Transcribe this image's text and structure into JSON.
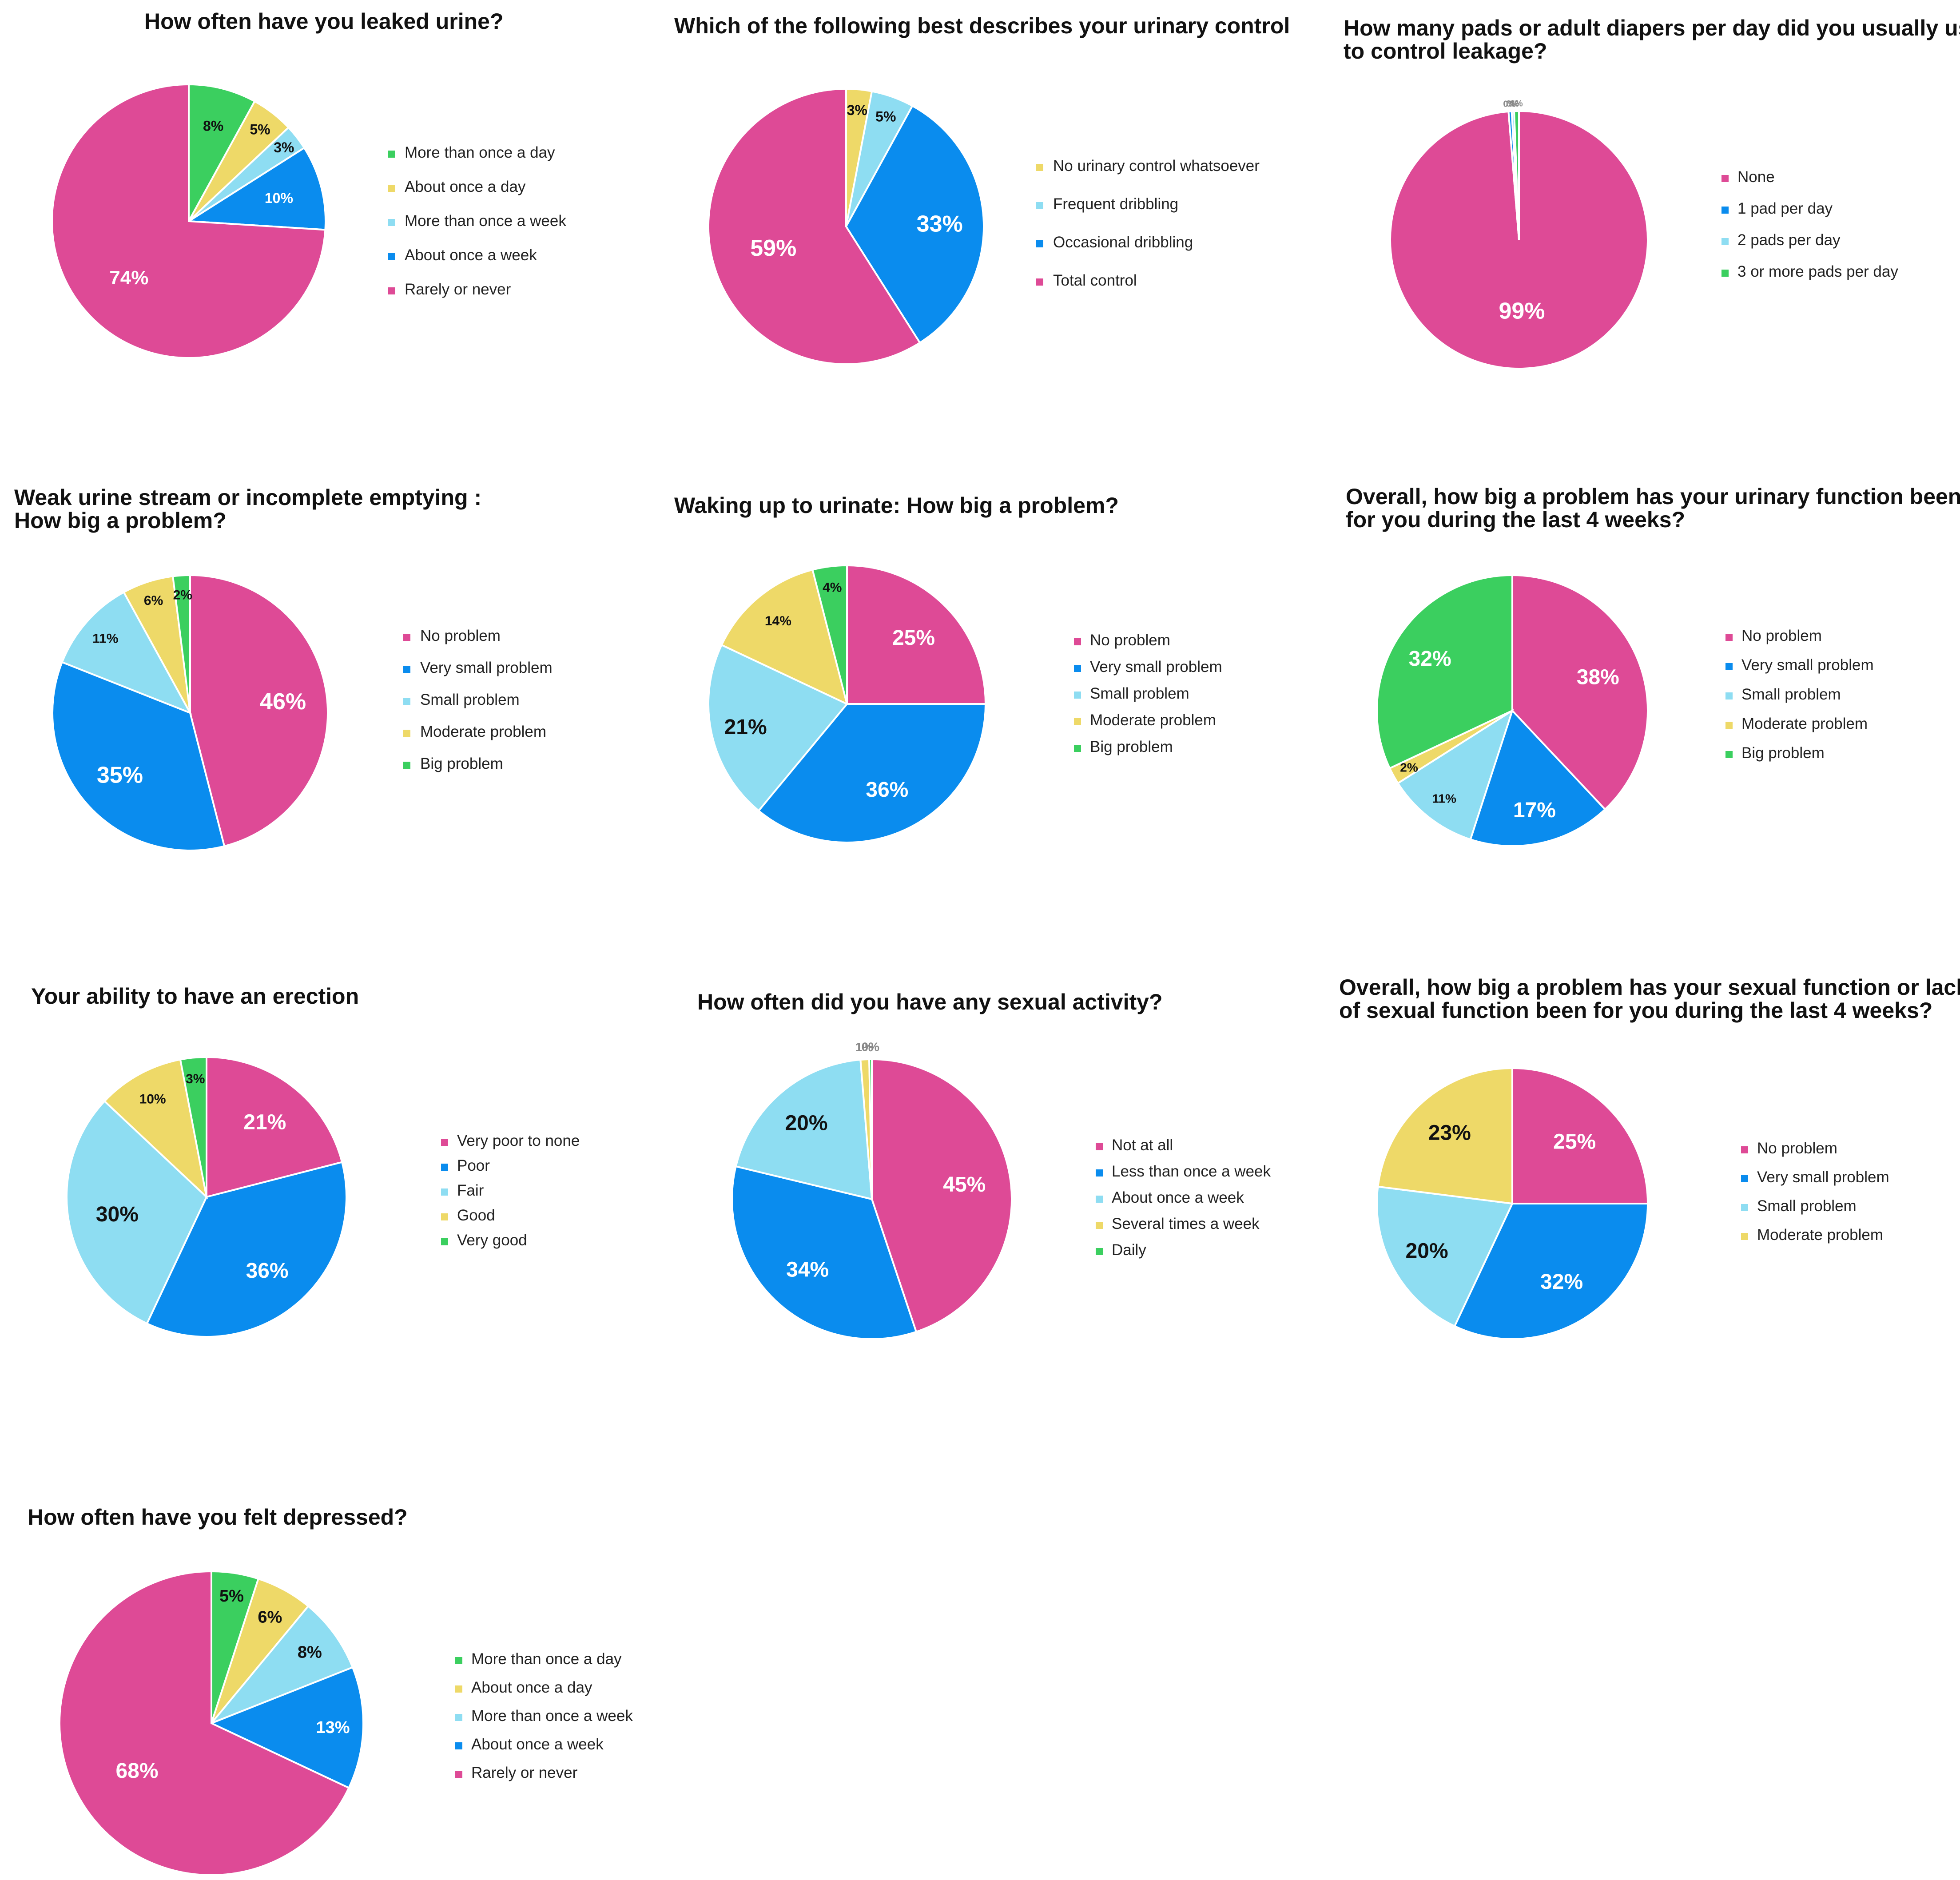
{
  "colors": {
    "pink": "#DE4A96",
    "blue": "#0A8CEE",
    "lightblue": "#8EDDF2",
    "yellow": "#EED968",
    "green": "#3BCF5F"
  },
  "chart_data": [
    {
      "type": "pie",
      "title": [
        "How often have you leaked urine?"
      ],
      "slices": [
        {
          "label": "More than once a day",
          "value": 8,
          "pct": "8%",
          "color": "green"
        },
        {
          "label": "About once a day",
          "value": 5,
          "pct": "5%",
          "color": "yellow"
        },
        {
          "label": "More than once a week",
          "value": 3,
          "pct": "3%",
          "color": "lightblue"
        },
        {
          "label": "About once a week",
          "value": 10,
          "pct": "10%",
          "color": "blue"
        },
        {
          "label": "Rarely or never",
          "value": 74,
          "pct": "74%",
          "color": "pink"
        }
      ],
      "legend": [
        "More than once a day",
        "About once a day",
        "More than once a week",
        "About once a week",
        "Rarely or never"
      ]
    },
    {
      "type": "pie",
      "title": [
        "Which of the following best describes your urinary control"
      ],
      "slices": [
        {
          "label": "No urinary control whatsoever",
          "value": 3,
          "pct": "3%",
          "color": "yellow"
        },
        {
          "label": "Frequent dribbling",
          "value": 5,
          "pct": "5%",
          "color": "lightblue"
        },
        {
          "label": "Occasional dribbling",
          "value": 33,
          "pct": "33%",
          "color": "blue"
        },
        {
          "label": "Total control",
          "value": 59,
          "pct": "59%",
          "color": "pink"
        }
      ],
      "legend": [
        "No urinary control whatsoever",
        "Frequent dribbling",
        "Occasional dribbling",
        "Total control"
      ]
    },
    {
      "type": "pie",
      "title": [
        "How many pads or adult diapers per day did you usually use",
        "to control leakage?"
      ],
      "slices": [
        {
          "label": "None",
          "value": 99,
          "pct": "99%",
          "color": "pink"
        },
        {
          "label": "1 pad per day",
          "value": 0.4,
          "pct": "0%",
          "color": "blue"
        },
        {
          "label": "2 pads per day",
          "value": 0.3,
          "pct": "0%",
          "color": "lightblue"
        },
        {
          "label": "3 or more pads per day",
          "value": 0.6,
          "pct": "1%",
          "color": "green"
        }
      ],
      "legend": [
        "None",
        "1 pad per day",
        "2 pads per day",
        "3 or more pads per day"
      ]
    },
    {
      "type": "pie",
      "title": [
        "Weak urine stream or incomplete emptying :",
        "How big a problem?"
      ],
      "slices": [
        {
          "label": "No problem",
          "value": 46,
          "pct": "46%",
          "color": "pink"
        },
        {
          "label": "Very small problem",
          "value": 35,
          "pct": "35%",
          "color": "blue"
        },
        {
          "label": "Small problem",
          "value": 11,
          "pct": "11%",
          "color": "lightblue"
        },
        {
          "label": "Moderate problem",
          "value": 6,
          "pct": "6%",
          "color": "yellow"
        },
        {
          "label": "Big problem",
          "value": 2,
          "pct": "2%",
          "color": "green"
        }
      ],
      "legend": [
        "No problem",
        "Very small problem",
        "Small problem",
        "Moderate problem",
        "Big problem"
      ]
    },
    {
      "type": "pie",
      "title": [
        "Waking up to urinate: How big a problem?"
      ],
      "slices": [
        {
          "label": "No problem",
          "value": 25,
          "pct": "25%",
          "color": "pink"
        },
        {
          "label": "Very small problem",
          "value": 36,
          "pct": "36%",
          "color": "blue"
        },
        {
          "label": "Small problem",
          "value": 21,
          "pct": "21%",
          "color": "lightblue"
        },
        {
          "label": "Moderate problem",
          "value": 14,
          "pct": "14%",
          "color": "yellow"
        },
        {
          "label": "Big problem",
          "value": 4,
          "pct": "4%",
          "color": "green"
        }
      ],
      "legend": [
        "No problem",
        "Very small problem",
        "Small problem",
        "Moderate problem",
        "Big problem"
      ]
    },
    {
      "type": "pie",
      "title": [
        "Overall, how big a problem has your urinary function been",
        "for you during the last 4 weeks?"
      ],
      "slices": [
        {
          "label": "No problem",
          "value": 38,
          "pct": "38%",
          "color": "pink"
        },
        {
          "label": "Very small problem",
          "value": 17,
          "pct": "17%",
          "color": "blue"
        },
        {
          "label": "Small problem",
          "value": 11,
          "pct": "11%",
          "color": "lightblue"
        },
        {
          "label": "Moderate problem",
          "value": 2,
          "pct": "2%",
          "color": "yellow"
        },
        {
          "label": "Big problem",
          "value": 32,
          "pct": "32%",
          "color": "green"
        }
      ],
      "legend": [
        "No problem",
        "Very small problem",
        "Small problem",
        "Moderate problem",
        "Big problem"
      ]
    },
    {
      "type": "pie",
      "title": [
        "Your ability to have an erection"
      ],
      "slices": [
        {
          "label": "Very poor to none",
          "value": 21,
          "pct": "21%",
          "color": "pink"
        },
        {
          "label": "Poor",
          "value": 36,
          "pct": "36%",
          "color": "blue"
        },
        {
          "label": "Fair",
          "value": 30,
          "pct": "30%",
          "color": "lightblue"
        },
        {
          "label": "Good",
          "value": 10,
          "pct": "10%",
          "color": "yellow"
        },
        {
          "label": "Very good",
          "value": 3,
          "pct": "3%",
          "color": "green"
        }
      ],
      "legend": [
        "Very poor to none",
        "Poor",
        "Fair",
        "Good",
        "Very good"
      ]
    },
    {
      "type": "pie",
      "title": [
        "How often did you have any sexual activity?"
      ],
      "slices": [
        {
          "label": "Not at all",
          "value": 45,
          "pct": "45%",
          "color": "pink"
        },
        {
          "label": "Less than once a week",
          "value": 34,
          "pct": "34%",
          "color": "blue"
        },
        {
          "label": "About once a week",
          "value": 20,
          "pct": "20%",
          "color": "lightblue"
        },
        {
          "label": "Several times a week",
          "value": 1,
          "pct": "1%",
          "color": "yellow"
        },
        {
          "label": "Daily",
          "value": 0.3,
          "pct": "0%",
          "color": "green"
        }
      ],
      "legend": [
        "Not at all",
        "Less than once a week",
        "About once a week",
        "Several times a week",
        "Daily"
      ]
    },
    {
      "type": "pie",
      "title": [
        "Overall, how big a problem has your sexual function or lack",
        "of sexual function been for you during the last 4 weeks?"
      ],
      "slices": [
        {
          "label": "No problem",
          "value": 25,
          "pct": "25%",
          "color": "pink"
        },
        {
          "label": "Very small problem",
          "value": 32,
          "pct": "32%",
          "color": "blue"
        },
        {
          "label": "Small problem",
          "value": 20,
          "pct": "20%",
          "color": "lightblue"
        },
        {
          "label": "Moderate problem",
          "value": 23,
          "pct": "23%",
          "color": "yellow"
        }
      ],
      "legend": [
        "No problem",
        "Very small problem",
        "Small problem",
        "Moderate problem"
      ]
    },
    {
      "type": "pie",
      "title": [
        "How often have you felt depressed?"
      ],
      "slices": [
        {
          "label": "More than once a day",
          "value": 5,
          "pct": "5%",
          "color": "green"
        },
        {
          "label": "About once a day",
          "value": 6,
          "pct": "6%",
          "color": "yellow"
        },
        {
          "label": "More than once a week",
          "value": 8,
          "pct": "8%",
          "color": "lightblue"
        },
        {
          "label": "About once a week",
          "value": 13,
          "pct": "13%",
          "color": "blue"
        },
        {
          "label": "Rarely or never",
          "value": 68,
          "pct": "68%",
          "color": "pink"
        }
      ],
      "legend": [
        "More than once a day",
        "About once a day",
        "More than once a week",
        "About once a week",
        "Rarely or never"
      ]
    }
  ]
}
